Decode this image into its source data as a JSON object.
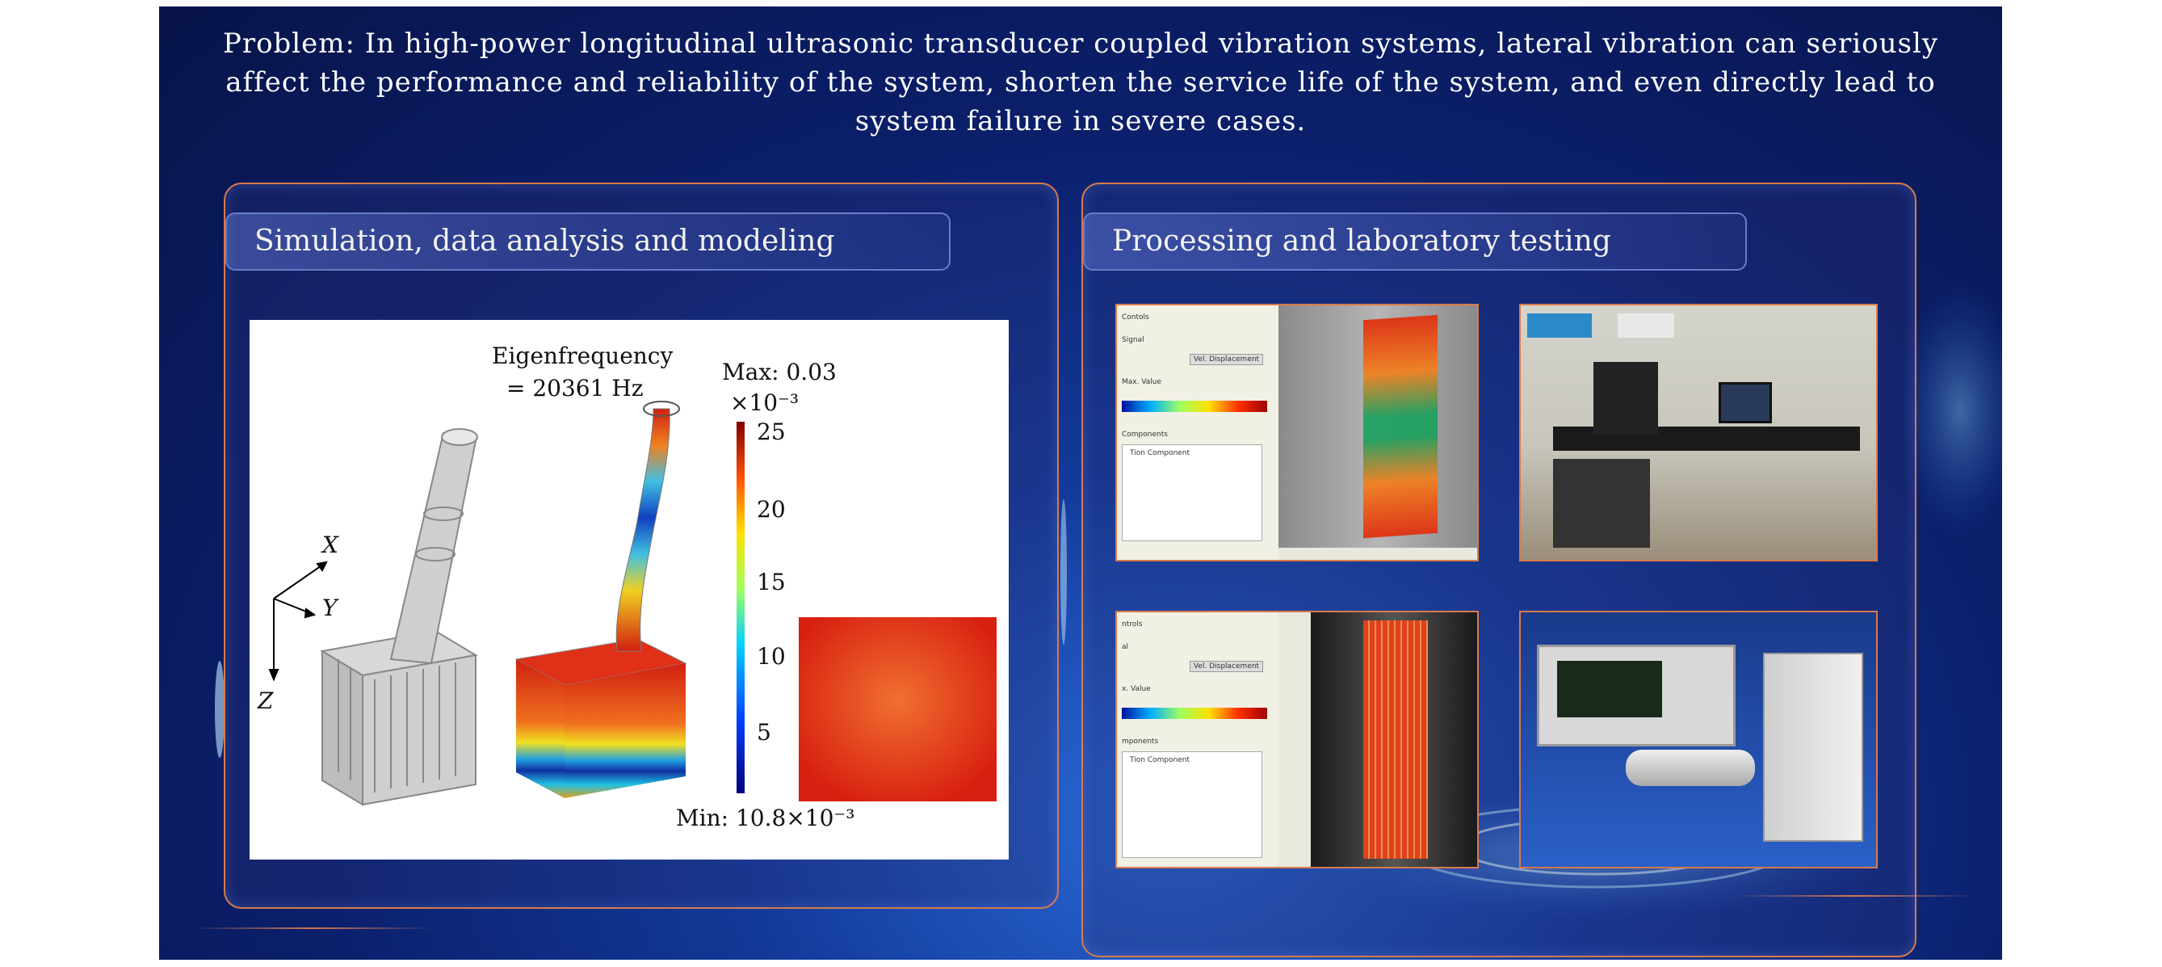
{
  "problem_text": "Problem: In high-power longitudinal ultrasonic transducer coupled vibration systems, lateral vibration can seriously affect the performance and reliability of the system, shorten the service life of the system, and even directly lead to system failure in severe cases.",
  "left_panel": {
    "title": "Simulation, data analysis and modeling",
    "simulation": {
      "eigen_label_1": "Eigenfrequency",
      "eigen_label_2": "= 20361 Hz",
      "max_label": "Max: 0.03",
      "scale_label": "×10⁻³",
      "min_label": "Min: 10.8×10⁻³",
      "colorbar_ticks": [
        "25",
        "20",
        "15",
        "10",
        "5"
      ],
      "axis_x": "X",
      "axis_y": "Y",
      "axis_z": "Z"
    }
  },
  "right_panel": {
    "title": "Processing and laboratory testing",
    "screen1": {
      "label_1": "Contols",
      "label_2": "Signal",
      "button": "Vel. Displacement",
      "label_3": "Max. Value",
      "label_4": "Components",
      "item": "Tion Component"
    },
    "screen2": {
      "label_1": "ntrols",
      "label_2": "al",
      "button": "Vel. Displacement",
      "label_3": "x. Value",
      "label_4": "mponents",
      "item": "Tion Component"
    }
  },
  "colors": {
    "accent_orange": "#d97a4a",
    "background_blue": "#0b1f6b",
    "panel_title_border": "#6a7cc8"
  }
}
